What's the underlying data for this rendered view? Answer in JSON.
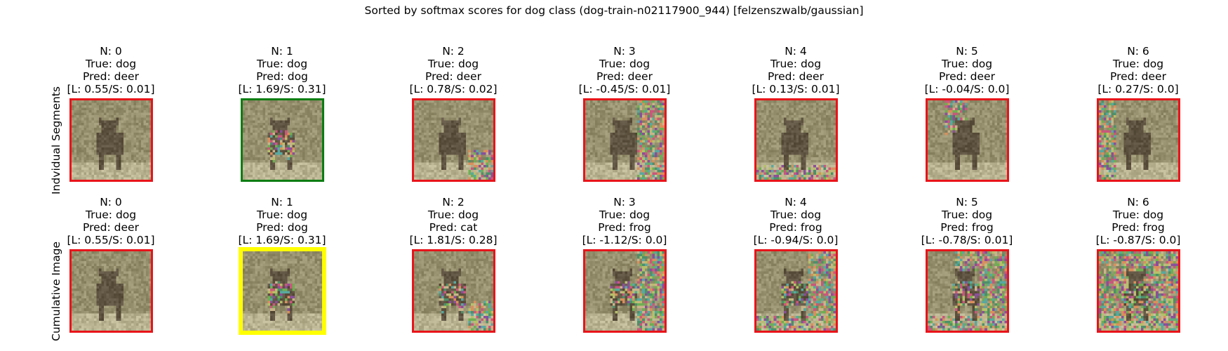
{
  "figure": {
    "title": "Sorted by softmax scores for dog class (dog-train-n02117900_944) [felzenszwalb/gaussian]"
  },
  "colors": {
    "wrong_border": "#e8141a",
    "correct_border": "#0b7d12",
    "best_border": "#ffff00"
  },
  "rows": [
    {
      "label": "Indvidual Segments",
      "panels": [
        {
          "n": "N: 0",
          "true": "True: dog",
          "pred": "Pred: deer",
          "score": "[L: 0.55/S: 0.01]",
          "border": "wrong",
          "noise": "none"
        },
        {
          "n": "N: 1",
          "true": "True: dog",
          "pred": "Pred: dog",
          "score": "[L: 1.69/S: 0.31]",
          "border": "correct",
          "noise": "body"
        },
        {
          "n": "N: 2",
          "true": "True: dog",
          "pred": "Pred: deer",
          "score": "[L: 0.78/S: 0.02]",
          "border": "wrong",
          "noise": "bottom-right"
        },
        {
          "n": "N: 3",
          "true": "True: dog",
          "pred": "Pred: deer",
          "score": "[L: -0.45/S: 0.01]",
          "border": "wrong",
          "noise": "right"
        },
        {
          "n": "N: 4",
          "true": "True: dog",
          "pred": "Pred: deer",
          "score": "[L: 0.13/S: 0.01]",
          "border": "wrong",
          "noise": "bottom"
        },
        {
          "n": "N: 5",
          "true": "True: dog",
          "pred": "Pred: deer",
          "score": "[L: -0.04/S: 0.0]",
          "border": "wrong",
          "noise": "top-left"
        },
        {
          "n": "N: 6",
          "true": "True: dog",
          "pred": "Pred: deer",
          "score": "[L: 0.27/S: 0.0]",
          "border": "wrong",
          "noise": "left"
        }
      ]
    },
    {
      "label": "Cumulative Image",
      "panels": [
        {
          "n": "N: 0",
          "true": "True: dog",
          "pred": "Pred: deer",
          "score": "[L: 0.55/S: 0.01]",
          "border": "wrong",
          "noise": "none"
        },
        {
          "n": "N: 1",
          "true": "True: dog",
          "pred": "Pred: dog",
          "score": "[L: 1.69/S: 0.31]",
          "border": "best",
          "noise": "body"
        },
        {
          "n": "N: 2",
          "true": "True: dog",
          "pred": "Pred: cat",
          "score": "[L: 1.81/S: 0.28]",
          "border": "wrong",
          "noise": "body+bottom-right"
        },
        {
          "n": "N: 3",
          "true": "True: dog",
          "pred": "Pred: frog",
          "score": "[L: -1.12/S: 0.0]",
          "border": "wrong",
          "noise": "body+right"
        },
        {
          "n": "N: 4",
          "true": "True: dog",
          "pred": "Pred: frog",
          "score": "[L: -0.94/S: 0.0]",
          "border": "wrong",
          "noise": "body+right+bottom"
        },
        {
          "n": "N: 5",
          "true": "True: dog",
          "pred": "Pred: frog",
          "score": "[L: -0.78/S: 0.01]",
          "border": "wrong",
          "noise": "body+right+bottom+top"
        },
        {
          "n": "N: 6",
          "true": "True: dog",
          "pred": "Pred: frog",
          "score": "[L: -0.87/S: 0.0]",
          "border": "wrong",
          "noise": "all"
        }
      ]
    }
  ]
}
